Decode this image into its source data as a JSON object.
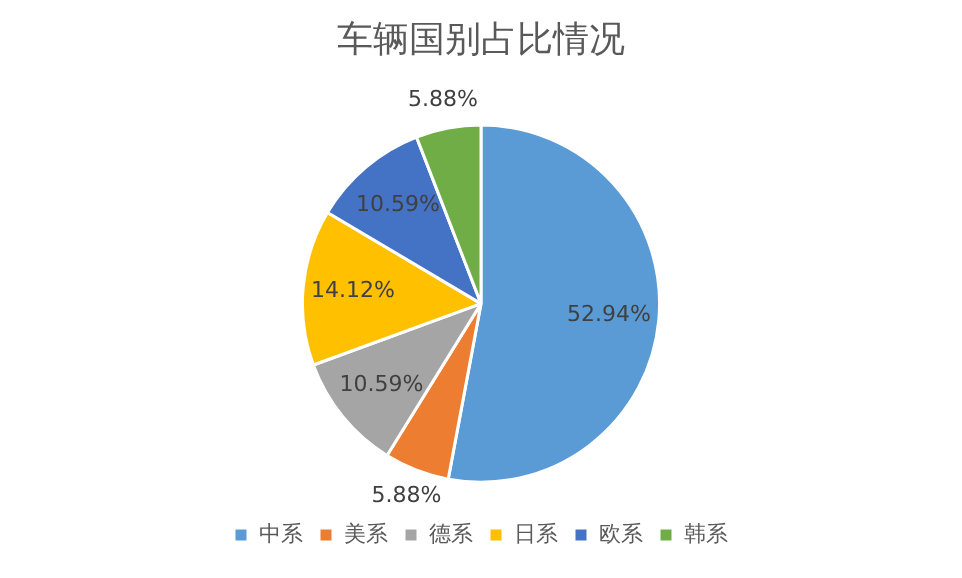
{
  "chart_data": {
    "type": "pie",
    "title": "车辆国别占比情况",
    "categories": [
      "中系",
      "美系",
      "德系",
      "日系",
      "欧系",
      "韩系"
    ],
    "values": [
      52.94,
      5.88,
      10.59,
      14.12,
      10.59,
      5.88
    ],
    "colors": [
      "#5b9bd5",
      "#ed7d31",
      "#a5a5a5",
      "#ffc000",
      "#4472c4",
      "#70ad47"
    ],
    "value_labels": [
      "52.94%",
      "5.88%",
      "10.59%",
      "14.12%",
      "10.59%",
      "5.88%"
    ],
    "legend": "bottom"
  }
}
